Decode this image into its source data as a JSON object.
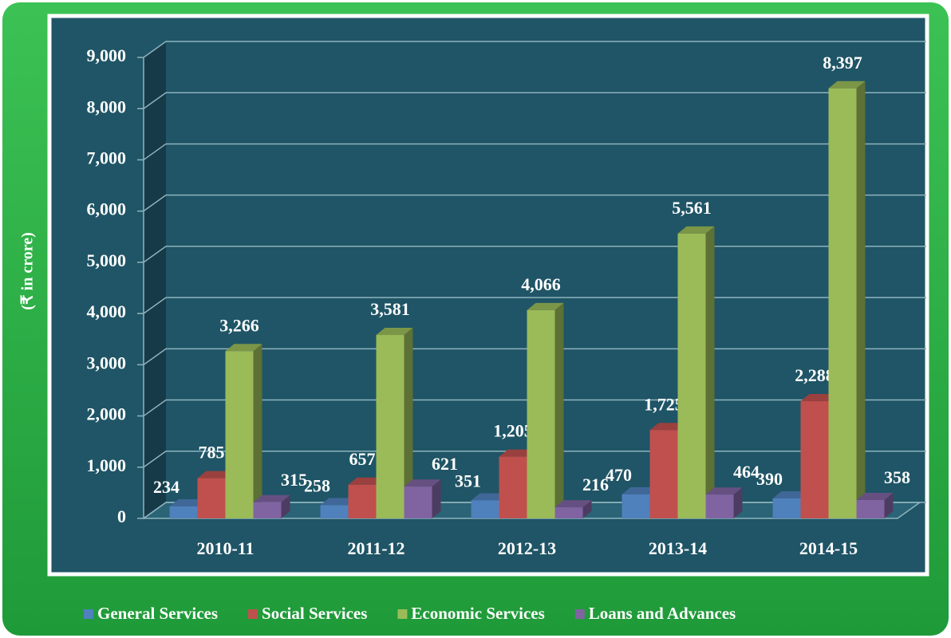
{
  "chart_data": {
    "type": "bar3d",
    "y_label": "(₹ in crore)",
    "categories": [
      "2010-11",
      "2011-12",
      "2012-13",
      "2013-14",
      "2014-15"
    ],
    "series": [
      {
        "name": "General Services",
        "color": "#4f81bd",
        "values": [
          234,
          258,
          351,
          470,
          390
        ],
        "value_labels": [
          "234",
          "258",
          "351",
          "470",
          "390"
        ]
      },
      {
        "name": "Social Services",
        "color": "#c0504d",
        "values": [
          785,
          657,
          1205,
          1725,
          2288
        ],
        "value_labels": [
          "785",
          "657",
          "1,205",
          "1,725",
          "2,288"
        ]
      },
      {
        "name": "Economic Services",
        "color": "#9bbb59",
        "values": [
          3266,
          3581,
          4066,
          5561,
          8397
        ],
        "value_labels": [
          "3,266",
          "3,581",
          "4,066",
          "5,561",
          "8,397"
        ]
      },
      {
        "name": "Loans and Advances",
        "color": "#8064a2",
        "values": [
          315,
          621,
          216,
          464,
          358
        ],
        "value_labels": [
          "315",
          "621",
          "216",
          "464",
          "358"
        ]
      }
    ],
    "ylim": [
      0,
      9000
    ],
    "yticks": [
      0,
      {
        "value": 1000,
        "label": "1,000"
      },
      {
        "value": 2000,
        "label": "2,000"
      },
      {
        "value": 3000,
        "label": "3,000"
      },
      {
        "value": 4000,
        "label": "4,000"
      },
      {
        "value": 5000,
        "label": "5,000"
      },
      {
        "value": 6000,
        "label": "6,000"
      },
      {
        "value": 7000,
        "label": "7,000"
      },
      {
        "value": 8000,
        "label": "8,000"
      },
      {
        "value": 9000,
        "label": "9,000"
      }
    ],
    "grid": true
  }
}
